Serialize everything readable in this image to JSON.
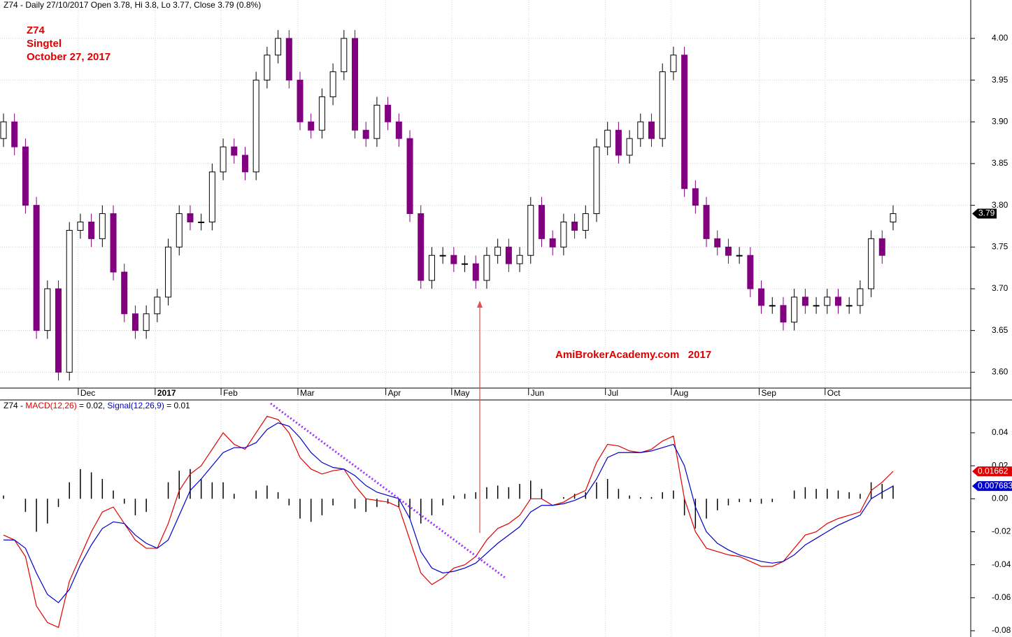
{
  "chart_data": [
    {
      "type": "candlestick",
      "title": "Z74 - Daily 27/10/2017 Open 3.78, Hi 3.8, Lo 3.77, Close 3.79 (0.8%)",
      "annotations": [
        "Z74",
        "Singtel",
        "October 27, 2017",
        "AmiBrokerAcademy.com   2017"
      ],
      "categories": [
        null,
        null,
        null,
        null,
        null,
        null,
        null,
        "Dec",
        null,
        null,
        null,
        null,
        null,
        null,
        "2017",
        null,
        null,
        null,
        null,
        null,
        "Feb",
        null,
        null,
        null,
        null,
        null,
        null,
        "Mar",
        null,
        null,
        null,
        null,
        null,
        null,
        null,
        "Apr",
        null,
        null,
        null,
        null,
        null,
        "May",
        null,
        null,
        null,
        null,
        null,
        null,
        "Jun",
        null,
        null,
        null,
        null,
        null,
        null,
        "Jul",
        null,
        null,
        null,
        null,
        null,
        "Aug",
        null,
        null,
        null,
        null,
        null,
        null,
        null,
        "Sep",
        null,
        null,
        null,
        null,
        null,
        "Oct",
        null,
        null,
        null,
        null,
        null,
        null
      ],
      "open": [
        3.88,
        3.9,
        3.87,
        3.8,
        3.65,
        3.7,
        3.6,
        3.77,
        3.78,
        3.76,
        3.79,
        3.72,
        3.67,
        3.65,
        3.67,
        3.69,
        3.75,
        3.79,
        3.78,
        3.78,
        3.84,
        3.87,
        3.86,
        3.84,
        3.95,
        3.98,
        4.0,
        3.95,
        3.9,
        3.89,
        3.93,
        3.96,
        4.0,
        3.89,
        3.88,
        3.92,
        3.9,
        3.88,
        3.79,
        3.71,
        3.74,
        3.74,
        3.73,
        3.73,
        3.71,
        3.74,
        3.75,
        3.73,
        3.74,
        3.8,
        3.76,
        3.75,
        3.78,
        3.77,
        3.79,
        3.87,
        3.89,
        3.86,
        3.88,
        3.9,
        3.88,
        3.96,
        3.98,
        3.82,
        3.8,
        3.76,
        3.75,
        3.74,
        3.74,
        3.7,
        3.68,
        3.68,
        3.66,
        3.69,
        3.68,
        3.68,
        3.69,
        3.68,
        3.68,
        3.7,
        3.76,
        3.78
      ],
      "high": [
        3.91,
        3.91,
        3.88,
        3.81,
        3.71,
        3.71,
        3.78,
        3.79,
        3.79,
        3.8,
        3.8,
        3.73,
        3.68,
        3.68,
        3.7,
        3.76,
        3.8,
        3.8,
        3.79,
        3.85,
        3.88,
        3.88,
        3.87,
        3.96,
        3.99,
        4.01,
        4.01,
        3.96,
        3.91,
        3.94,
        3.97,
        4.01,
        4.01,
        3.9,
        3.93,
        3.93,
        3.91,
        3.89,
        3.8,
        3.75,
        3.75,
        3.75,
        3.74,
        3.74,
        3.75,
        3.76,
        3.76,
        3.75,
        3.81,
        3.81,
        3.77,
        3.79,
        3.79,
        3.8,
        3.88,
        3.9,
        3.9,
        3.89,
        3.91,
        3.91,
        3.97,
        3.99,
        3.99,
        3.83,
        3.81,
        3.77,
        3.76,
        3.75,
        3.75,
        3.71,
        3.69,
        3.69,
        3.7,
        3.7,
        3.69,
        3.7,
        3.7,
        3.69,
        3.71,
        3.77,
        3.77,
        3.8
      ],
      "low": [
        3.87,
        3.86,
        3.79,
        3.64,
        3.64,
        3.59,
        3.59,
        3.76,
        3.75,
        3.75,
        3.71,
        3.66,
        3.64,
        3.64,
        3.66,
        3.68,
        3.74,
        3.77,
        3.77,
        3.77,
        3.83,
        3.85,
        3.83,
        3.83,
        3.94,
        3.97,
        3.94,
        3.89,
        3.88,
        3.88,
        3.92,
        3.95,
        3.88,
        3.87,
        3.87,
        3.89,
        3.87,
        3.78,
        3.7,
        3.7,
        3.73,
        3.72,
        3.72,
        3.7,
        3.7,
        3.73,
        3.72,
        3.72,
        3.73,
        3.75,
        3.74,
        3.74,
        3.76,
        3.76,
        3.78,
        3.86,
        3.85,
        3.85,
        3.87,
        3.87,
        3.87,
        3.95,
        3.81,
        3.79,
        3.75,
        3.74,
        3.73,
        3.73,
        3.69,
        3.67,
        3.67,
        3.65,
        3.65,
        3.67,
        3.67,
        3.67,
        3.67,
        3.67,
        3.67,
        3.69,
        3.73,
        3.77
      ],
      "close": [
        3.9,
        3.87,
        3.8,
        3.65,
        3.7,
        3.6,
        3.77,
        3.78,
        3.76,
        3.79,
        3.72,
        3.67,
        3.65,
        3.67,
        3.69,
        3.75,
        3.79,
        3.78,
        3.78,
        3.84,
        3.87,
        3.86,
        3.84,
        3.95,
        3.98,
        4.0,
        3.95,
        3.9,
        3.89,
        3.93,
        3.96,
        4.0,
        3.89,
        3.88,
        3.92,
        3.9,
        3.88,
        3.79,
        3.71,
        3.74,
        3.74,
        3.73,
        3.73,
        3.71,
        3.74,
        3.75,
        3.73,
        3.74,
        3.8,
        3.76,
        3.75,
        3.78,
        3.77,
        3.79,
        3.87,
        3.89,
        3.86,
        3.88,
        3.9,
        3.88,
        3.96,
        3.98,
        3.82,
        3.8,
        3.76,
        3.75,
        3.74,
        3.74,
        3.7,
        3.68,
        3.68,
        3.66,
        3.69,
        3.68,
        3.68,
        3.69,
        3.68,
        3.68,
        3.7,
        3.76,
        3.74,
        3.79
      ],
      "up_color": "#ffffff",
      "down_color": "#800080",
      "ylim": [
        3.581,
        4.046
      ],
      "yticks": [
        {
          "value": 3.6,
          "label": "3.60"
        },
        {
          "value": 3.65,
          "label": "3.65"
        },
        {
          "value": 3.7,
          "label": "3.70"
        },
        {
          "value": 3.75,
          "label": "3.75"
        },
        {
          "value": 3.8,
          "label": "3.80"
        },
        {
          "value": 3.85,
          "label": "3.85"
        },
        {
          "value": 3.9,
          "label": "3.90"
        },
        {
          "value": 3.95,
          "label": "3.95"
        },
        {
          "value": 4.0,
          "label": "4.00"
        }
      ],
      "grid": true
    },
    {
      "type": "line",
      "title": [
        "Z74 - ",
        "= 0.02, ",
        "= 0.01"
      ],
      "series": [
        {
          "name": "MACD(12,26)",
          "color": "#e00000",
          "values": [
            -0.022,
            -0.025,
            -0.035,
            -0.065,
            -0.075,
            -0.078,
            -0.05,
            -0.035,
            -0.02,
            -0.008,
            -0.005,
            -0.015,
            -0.025,
            -0.03,
            -0.03,
            -0.015,
            0.005,
            0.015,
            0.02,
            0.03,
            0.04,
            0.033,
            0.03,
            0.04,
            0.05,
            0.048,
            0.04,
            0.025,
            0.018,
            0.015,
            0.017,
            0.018,
            0.008,
            0.0,
            -0.001,
            -0.002,
            -0.005,
            -0.025,
            -0.045,
            -0.052,
            -0.048,
            -0.042,
            -0.04,
            -0.035,
            -0.025,
            -0.018,
            -0.015,
            -0.01,
            0.0,
            0.0,
            -0.004,
            -0.002,
            0.002,
            0.005,
            0.022,
            0.033,
            0.032,
            0.029,
            0.028,
            0.03,
            0.035,
            0.038,
            0.0,
            -0.02,
            -0.03,
            -0.032,
            -0.034,
            -0.035,
            -0.038,
            -0.041,
            -0.041,
            -0.038,
            -0.03,
            -0.022,
            -0.02,
            -0.015,
            -0.012,
            -0.01,
            -0.008,
            0.005,
            0.01,
            0.01662
          ]
        },
        {
          "name": "Signal(12,26,9)",
          "color": "#0000cc",
          "values": [
            -0.025,
            -0.025,
            -0.03,
            -0.045,
            -0.058,
            -0.063,
            -0.055,
            -0.04,
            -0.028,
            -0.018,
            -0.014,
            -0.015,
            -0.022,
            -0.027,
            -0.03,
            -0.025,
            -0.01,
            0.005,
            0.012,
            0.02,
            0.028,
            0.031,
            0.031,
            0.034,
            0.042,
            0.046,
            0.044,
            0.037,
            0.028,
            0.022,
            0.019,
            0.018,
            0.014,
            0.008,
            0.004,
            0.002,
            0.0,
            -0.012,
            -0.032,
            -0.042,
            -0.045,
            -0.044,
            -0.042,
            -0.039,
            -0.033,
            -0.027,
            -0.022,
            -0.017,
            -0.008,
            -0.004,
            -0.004,
            -0.003,
            -0.001,
            0.002,
            0.012,
            0.025,
            0.028,
            0.028,
            0.028,
            0.029,
            0.031,
            0.033,
            0.02,
            -0.005,
            -0.02,
            -0.027,
            -0.031,
            -0.034,
            -0.036,
            -0.038,
            -0.039,
            -0.038,
            -0.034,
            -0.028,
            -0.024,
            -0.02,
            -0.016,
            -0.013,
            -0.01,
            0.0,
            0.004,
            0.007683
          ]
        }
      ],
      "histogram": {
        "color": "#000000",
        "values": [
          0.002,
          0,
          -0.008,
          -0.02,
          -0.015,
          -0.005,
          0.01,
          0.018,
          0.016,
          0.012,
          0.005,
          -0.003,
          -0.01,
          -0.008,
          0.0,
          0.01,
          0.017,
          0.018,
          0.012,
          0.01,
          0.01,
          0.003,
          0.0,
          0.005,
          0.008,
          0.004,
          -0.004,
          -0.012,
          -0.014,
          -0.01,
          -0.004,
          0.0,
          -0.006,
          -0.008,
          -0.005,
          -0.003,
          -0.005,
          -0.012,
          -0.015,
          -0.01,
          -0.004,
          0.002,
          0.003,
          0.004,
          0.007,
          0.008,
          0.007,
          0.009,
          0.011,
          0.006,
          0.0,
          0.001,
          0.003,
          0.004,
          0.01,
          0.012,
          0.006,
          0.002,
          0.001,
          0.001,
          0.004,
          0.005,
          -0.01,
          -0.018,
          -0.012,
          -0.007,
          -0.004,
          -0.002,
          -0.002,
          -0.003,
          -0.002,
          0.0,
          0.005,
          0.007,
          0.006,
          0.006,
          0.005,
          0.004,
          0.003,
          0.01,
          0.009,
          0.008
        ]
      },
      "ylim": [
        -0.0838,
        0.0599
      ],
      "yticks": [
        -0.08,
        -0.06,
        -0.04,
        -0.02,
        {
          "value": 0,
          "label": "0.00"
        },
        0.02,
        0.04
      ],
      "grid": false
    }
  ]
}
